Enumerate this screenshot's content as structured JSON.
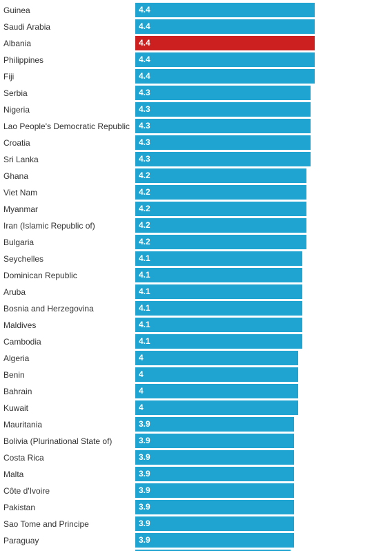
{
  "chart_data": {
    "type": "bar",
    "orientation": "horizontal",
    "categories": [
      "Guinea",
      "Saudi Arabia",
      "Albania",
      "Philippines",
      "Fiji",
      "Serbia",
      "Nigeria",
      "Lao People's Democratic Republic",
      "Croatia",
      "Sri Lanka",
      "Ghana",
      "Viet Nam",
      "Myanmar",
      "Iran (Islamic Republic of)",
      "Bulgaria",
      "Seychelles",
      "Dominican Republic",
      "Aruba",
      "Bosnia and Herzegovina",
      "Maldives",
      "Cambodia",
      "Algeria",
      "Benin",
      "Bahrain",
      "Kuwait",
      "Mauritania",
      "Bolivia (Plurinational State of)",
      "Costa Rica",
      "Malta",
      "Côte d'Ivoire",
      "Pakistan",
      "Sao Tome and Principe",
      "Paraguay"
    ],
    "values": [
      4.4,
      4.4,
      4.4,
      4.4,
      4.4,
      4.3,
      4.3,
      4.3,
      4.3,
      4.3,
      4.2,
      4.2,
      4.2,
      4.2,
      4.2,
      4.1,
      4.1,
      4.1,
      4.1,
      4.1,
      4.1,
      4,
      4,
      4,
      4,
      3.9,
      3.9,
      3.9,
      3.9,
      3.9,
      3.9,
      3.9,
      3.9
    ],
    "value_labels": [
      "4.4",
      "4.4",
      "4.4",
      "4.4",
      "4.4",
      "4.3",
      "4.3",
      "4.3",
      "4.3",
      "4.3",
      "4.2",
      "4.2",
      "4.2",
      "4.2",
      "4.2",
      "4.1",
      "4.1",
      "4.1",
      "4.1",
      "4.1",
      "4.1",
      "4",
      "4",
      "4",
      "4",
      "3.9",
      "3.9",
      "3.9",
      "3.9",
      "3.9",
      "3.9",
      "3.9",
      "3.9"
    ],
    "highlight": "Albania",
    "colors": {
      "bar": "#1fa3d0",
      "highlight": "#cc1f1f",
      "label_text": "#333333",
      "value_text": "#ffffff"
    },
    "title": "",
    "xlabel": "",
    "ylabel": "",
    "grid": false,
    "legend": "none"
  }
}
